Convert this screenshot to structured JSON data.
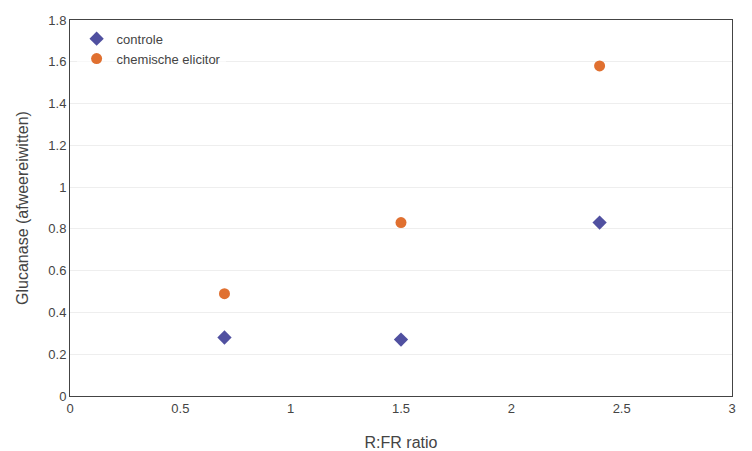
{
  "chart_data": {
    "type": "scatter",
    "xlabel": "R:FR ratio",
    "ylabel": "Glucanase (afweereiwitten)",
    "x": [
      0.7,
      1.5,
      2.4
    ],
    "series": [
      {
        "name": "controle",
        "color": "#5050a0",
        "marker": "diamond",
        "values": [
          0.28,
          0.27,
          0.83
        ]
      },
      {
        "name": "chemische elicitor",
        "color": "#e07030",
        "marker": "circle",
        "values": [
          0.49,
          0.83,
          1.58
        ]
      }
    ],
    "xlim": [
      0,
      3
    ],
    "ylim": [
      0,
      1.8
    ],
    "xticks": [
      0,
      0.5,
      1,
      1.5,
      2,
      2.5,
      3
    ],
    "yticks": [
      0,
      0.2,
      0.4,
      0.6,
      0.8,
      1,
      1.2,
      1.4,
      1.6,
      1.8
    ],
    "grid": "y",
    "legend": "upper left"
  }
}
